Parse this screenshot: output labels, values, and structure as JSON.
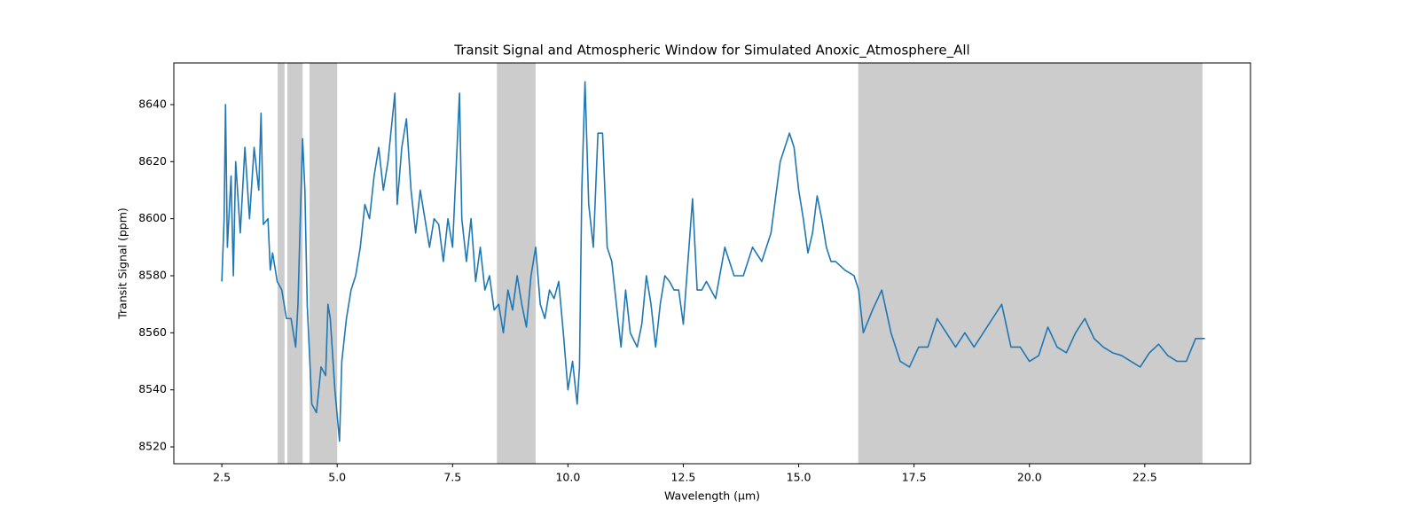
{
  "chart_data": {
    "type": "line",
    "title": "Transit Signal and Atmospheric Window for Simulated Anoxic_Atmosphere_All",
    "xlabel": "Wavelength (μm)",
    "ylabel": "Transit Signal (ppm)",
    "xlim": [
      1.46,
      24.79
    ],
    "ylim": [
      8514.1,
      8654.6
    ],
    "xticks": [
      2.5,
      {
        "value": 5,
        "label": "5.0"
      },
      7.5,
      {
        "value": 10,
        "label": "10.0"
      },
      12.5,
      {
        "value": 15,
        "label": "15.0"
      },
      17.5,
      {
        "value": 20,
        "label": "20.0"
      },
      22.5
    ],
    "yticks": [
      8520,
      8540,
      8560,
      8580,
      8600,
      8620,
      8640
    ],
    "spans": [
      [
        3.71,
        3.86
      ],
      [
        3.92,
        4.25
      ],
      [
        4.4,
        5.0
      ],
      [
        8.46,
        9.3
      ],
      [
        16.29,
        23.75
      ]
    ],
    "span_color": "#cccccc",
    "x": [
      2.5,
      2.55,
      2.58,
      2.62,
      2.7,
      2.75,
      2.8,
      2.9,
      3.0,
      3.1,
      3.2,
      3.3,
      3.35,
      3.4,
      3.5,
      3.55,
      3.6,
      3.7,
      3.8,
      3.9,
      4.0,
      4.1,
      4.15,
      4.2,
      4.25,
      4.3,
      4.35,
      4.45,
      4.55,
      4.65,
      4.75,
      4.8,
      4.85,
      4.95,
      5.05,
      5.1,
      5.2,
      5.3,
      5.4,
      5.5,
      5.6,
      5.7,
      5.8,
      5.9,
      6.0,
      6.1,
      6.25,
      6.3,
      6.4,
      6.5,
      6.6,
      6.7,
      6.8,
      6.9,
      7.0,
      7.1,
      7.2,
      7.3,
      7.4,
      7.5,
      7.65,
      7.7,
      7.8,
      7.9,
      8.0,
      8.1,
      8.2,
      8.3,
      8.4,
      8.5,
      8.6,
      8.7,
      8.8,
      8.9,
      9.0,
      9.1,
      9.2,
      9.3,
      9.4,
      9.5,
      9.6,
      9.7,
      9.8,
      9.9,
      10.0,
      10.1,
      10.2,
      10.25,
      10.3,
      10.37,
      10.45,
      10.55,
      10.65,
      10.75,
      10.85,
      10.95,
      11.05,
      11.15,
      11.25,
      11.35,
      11.5,
      11.6,
      11.7,
      11.8,
      11.9,
      12.0,
      12.1,
      12.2,
      12.3,
      12.4,
      12.5,
      12.6,
      12.7,
      12.8,
      12.9,
      13.0,
      13.2,
      13.4,
      13.6,
      13.8,
      14.0,
      14.2,
      14.4,
      14.6,
      14.8,
      14.9,
      15.0,
      15.1,
      15.2,
      15.3,
      15.4,
      15.5,
      15.6,
      15.7,
      15.8,
      16.0,
      16.2,
      16.3,
      16.4,
      16.6,
      16.8,
      17.0,
      17.2,
      17.4,
      17.6,
      17.8,
      18.0,
      18.2,
      18.4,
      18.6,
      18.8,
      19.0,
      19.2,
      19.4,
      19.6,
      19.8,
      20.0,
      20.2,
      20.4,
      20.6,
      20.8,
      21.0,
      21.2,
      21.4,
      21.6,
      21.8,
      22.0,
      22.2,
      22.4,
      22.6,
      22.8,
      23.0,
      23.2,
      23.4,
      23.6,
      23.8
    ],
    "series": [
      {
        "color": "#1f77b4",
        "values": [
          8578,
          8600,
          8640,
          8590,
          8615,
          8580,
          8620,
          8595,
          8625,
          8600,
          8625,
          8610,
          8637,
          8598,
          8600,
          8582,
          8588,
          8578,
          8575,
          8565,
          8565,
          8555,
          8570,
          8600,
          8628,
          8610,
          8570,
          8535,
          8532,
          8548,
          8545,
          8570,
          8565,
          8540,
          8522,
          8550,
          8565,
          8575,
          8580,
          8590,
          8605,
          8600,
          8615,
          8625,
          8610,
          8620,
          8644,
          8605,
          8625,
          8635,
          8610,
          8595,
          8610,
          8600,
          8590,
          8600,
          8598,
          8585,
          8600,
          8590,
          8644,
          8600,
          8585,
          8600,
          8578,
          8590,
          8575,
          8580,
          8568,
          8570,
          8560,
          8575,
          8568,
          8580,
          8570,
          8562,
          8580,
          8590,
          8570,
          8565,
          8575,
          8572,
          8578,
          8560,
          8540,
          8550,
          8535,
          8548,
          8610,
          8648,
          8605,
          8590,
          8630,
          8630,
          8590,
          8585,
          8570,
          8555,
          8575,
          8560,
          8555,
          8563,
          8580,
          8570,
          8555,
          8570,
          8580,
          8578,
          8575,
          8575,
          8563,
          8585,
          8607,
          8575,
          8575,
          8578,
          8572,
          8590,
          8580,
          8580,
          8590,
          8585,
          8595,
          8620,
          8630,
          8625,
          8610,
          8600,
          8588,
          8595,
          8608,
          8600,
          8590,
          8585,
          8585,
          8582,
          8580,
          8575,
          8560,
          8568,
          8575,
          8560,
          8550,
          8548,
          8555,
          8555,
          8565,
          8560,
          8555,
          8560,
          8555,
          8560,
          8565,
          8570,
          8555,
          8555,
          8550,
          8552,
          8562,
          8555,
          8553,
          8560,
          8565,
          8558,
          8555,
          8553,
          8552,
          8550,
          8548,
          8553,
          8556,
          8552,
          8550,
          8550,
          8558,
          8558
        ]
      }
    ]
  }
}
